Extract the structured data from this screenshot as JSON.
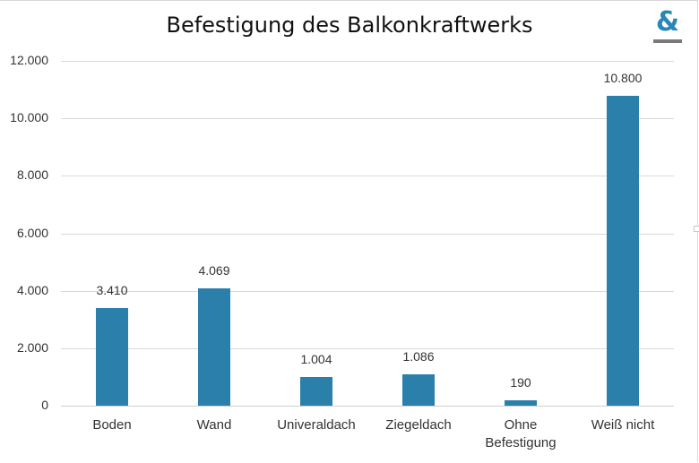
{
  "chart_data": {
    "type": "bar",
    "title": "Befestigung des Balkonkraftwerks",
    "xlabel": "",
    "ylabel": "",
    "categories": [
      "Boden",
      "Wand",
      "Univeraldach",
      "Ziegeldach",
      "Ohne Befestigung",
      "Weiß nicht"
    ],
    "values": [
      3410,
      4069,
      1004,
      1086,
      190,
      10800
    ],
    "value_labels": [
      "3.410",
      "4.069",
      "1.004",
      "1.086",
      "190",
      "10.800"
    ],
    "ylim": [
      0,
      12000
    ],
    "yticks": [
      0,
      2000,
      4000,
      6000,
      8000,
      10000,
      12000
    ],
    "ytick_labels": [
      "0",
      "2.000",
      "4.000",
      "6.000",
      "8.000",
      "10.000",
      "12.000"
    ],
    "grid": true,
    "legend": null,
    "bar_color": "#2a7fab"
  },
  "logo": {
    "symbol": "&",
    "color": "#2a86b8"
  }
}
